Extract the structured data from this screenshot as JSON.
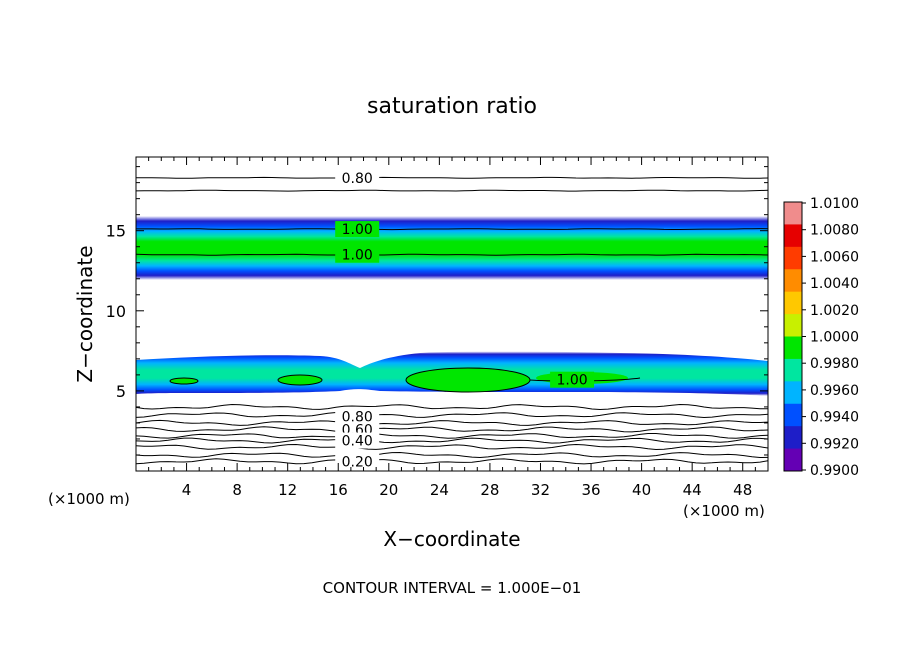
{
  "chart_data": {
    "type": "contour",
    "title": "saturation ratio",
    "xlabel": "X−coordinate",
    "ylabel": "Z−coordinate",
    "x_unit_left": "(×1000 m)",
    "x_unit_right": "(×1000 m)",
    "xlim": [
      0,
      50
    ],
    "ylim": [
      0,
      19.6
    ],
    "xticks": [
      4,
      8,
      12,
      16,
      20,
      24,
      28,
      32,
      36,
      40,
      44,
      48
    ],
    "yticks": [
      5,
      10,
      15
    ],
    "footer": "CONTOUR INTERVAL = 1.000E−01",
    "colorbar": {
      "levels": [
        "1.0100",
        "1.0080",
        "1.0060",
        "1.0040",
        "1.0020",
        "1.0000",
        "0.9980",
        "0.9960",
        "0.9940",
        "0.9920",
        "0.9900"
      ],
      "colors": [
        "#f08c8c",
        "#e60000",
        "#ff3c00",
        "#ff8c00",
        "#ffc800",
        "#c8f000",
        "#00e600",
        "#00e6a0",
        "#00b4ff",
        "#0050ff",
        "#1e1ec8",
        "#6400b4"
      ]
    },
    "contour_labels": [
      {
        "text": "0.80",
        "x": 17.5,
        "z": 18.3
      },
      {
        "text": "1.00",
        "x": 17.5,
        "z": 15.1
      },
      {
        "text": "1.00",
        "x": 17.5,
        "z": 13.5
      },
      {
        "text": "1.00",
        "x": 34.5,
        "z": 5.7
      },
      {
        "text": "0.80",
        "x": 17.5,
        "z": 3.4
      },
      {
        "text": "0.60",
        "x": 17.5,
        "z": 2.6
      },
      {
        "text": "0.40",
        "x": 17.5,
        "z": 1.9
      },
      {
        "text": "0.20",
        "x": 17.5,
        "z": 0.6
      }
    ],
    "contour_lines_z": [
      18.3,
      17.5,
      15.1,
      13.5,
      4.0,
      3.5,
      3.0,
      2.6,
      2.2,
      1.9,
      1.5,
      1.0,
      0.6
    ]
  }
}
